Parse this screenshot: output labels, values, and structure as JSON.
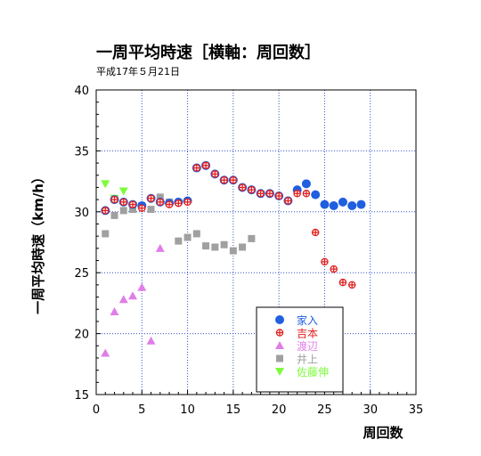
{
  "chart_data": {
    "type": "scatter",
    "title": "一周平均時速［横軸：周回数］",
    "subtitle": "平成17年５月21日",
    "xlabel": "周回数",
    "ylabel": "一周平均時速（km/h）",
    "xlim": [
      0,
      35
    ],
    "ylim": [
      15,
      40
    ],
    "xticks": [
      0,
      5,
      10,
      15,
      20,
      25,
      30,
      35
    ],
    "yticks": [
      15,
      20,
      25,
      30,
      35,
      40
    ],
    "grid": true,
    "legend_position": "bottom-right",
    "series": [
      {
        "name": "家入",
        "color": "#1f5fe0",
        "marker": "circle",
        "points": [
          [
            1,
            30.1
          ],
          [
            2,
            31.0
          ],
          [
            3,
            30.8
          ],
          [
            4,
            30.6
          ],
          [
            5,
            30.5
          ],
          [
            6,
            31.1
          ],
          [
            7,
            30.8
          ],
          [
            8,
            30.7
          ],
          [
            9,
            30.8
          ],
          [
            10,
            30.9
          ],
          [
            11,
            33.6
          ],
          [
            12,
            33.8
          ],
          [
            13,
            33.1
          ],
          [
            14,
            32.6
          ],
          [
            15,
            32.6
          ],
          [
            16,
            32.0
          ],
          [
            17,
            31.8
          ],
          [
            18,
            31.5
          ],
          [
            19,
            31.5
          ],
          [
            20,
            31.3
          ],
          [
            21,
            30.9
          ],
          [
            22,
            31.8
          ],
          [
            23,
            32.3
          ],
          [
            24,
            31.4
          ],
          [
            25,
            30.6
          ],
          [
            26,
            30.5
          ],
          [
            27,
            30.8
          ],
          [
            28,
            30.5
          ],
          [
            29,
            30.6
          ]
        ]
      },
      {
        "name": "吉本",
        "color": "#e02020",
        "marker": "cross",
        "points": [
          [
            1,
            30.1
          ],
          [
            2,
            31.0
          ],
          [
            3,
            30.8
          ],
          [
            4,
            30.6
          ],
          [
            5,
            30.3
          ],
          [
            6,
            31.1
          ],
          [
            7,
            30.8
          ],
          [
            8,
            30.6
          ],
          [
            9,
            30.7
          ],
          [
            10,
            30.8
          ],
          [
            11,
            33.6
          ],
          [
            12,
            33.8
          ],
          [
            13,
            33.1
          ],
          [
            14,
            32.6
          ],
          [
            15,
            32.6
          ],
          [
            16,
            32.0
          ],
          [
            17,
            31.8
          ],
          [
            18,
            31.5
          ],
          [
            19,
            31.5
          ],
          [
            20,
            31.3
          ],
          [
            21,
            30.9
          ],
          [
            22,
            31.5
          ],
          [
            23,
            31.5
          ],
          [
            24,
            28.3
          ],
          [
            25,
            25.9
          ],
          [
            26,
            25.3
          ],
          [
            27,
            24.2
          ],
          [
            28,
            24.0
          ]
        ]
      },
      {
        "name": "渡辺",
        "color": "#e07ee8",
        "marker": "triangle-up",
        "points": [
          [
            1,
            18.4
          ],
          [
            2,
            21.8
          ],
          [
            3,
            22.8
          ],
          [
            4,
            23.1
          ],
          [
            5,
            23.8
          ],
          [
            6,
            19.4
          ],
          [
            7,
            27.0
          ]
        ]
      },
      {
        "name": "井上",
        "color": "#a0a0a0",
        "marker": "square",
        "points": [
          [
            1,
            28.2
          ],
          [
            2,
            29.7
          ],
          [
            3,
            30.1
          ],
          [
            4,
            30.2
          ],
          [
            5,
            30.5
          ],
          [
            6,
            30.2
          ],
          [
            7,
            31.2
          ],
          [
            8,
            30.8
          ],
          [
            9,
            27.6
          ],
          [
            10,
            27.9
          ],
          [
            11,
            28.2
          ],
          [
            12,
            27.2
          ],
          [
            13,
            27.1
          ],
          [
            14,
            27.3
          ],
          [
            15,
            26.8
          ],
          [
            16,
            27.1
          ],
          [
            17,
            27.8
          ]
        ]
      },
      {
        "name": "佐藤伸",
        "color": "#7cfc3c",
        "marker": "triangle-down",
        "points": [
          [
            1,
            32.3
          ],
          [
            2,
            31.1
          ],
          [
            3,
            31.7
          ],
          [
            4,
            30.5
          ]
        ]
      }
    ]
  }
}
